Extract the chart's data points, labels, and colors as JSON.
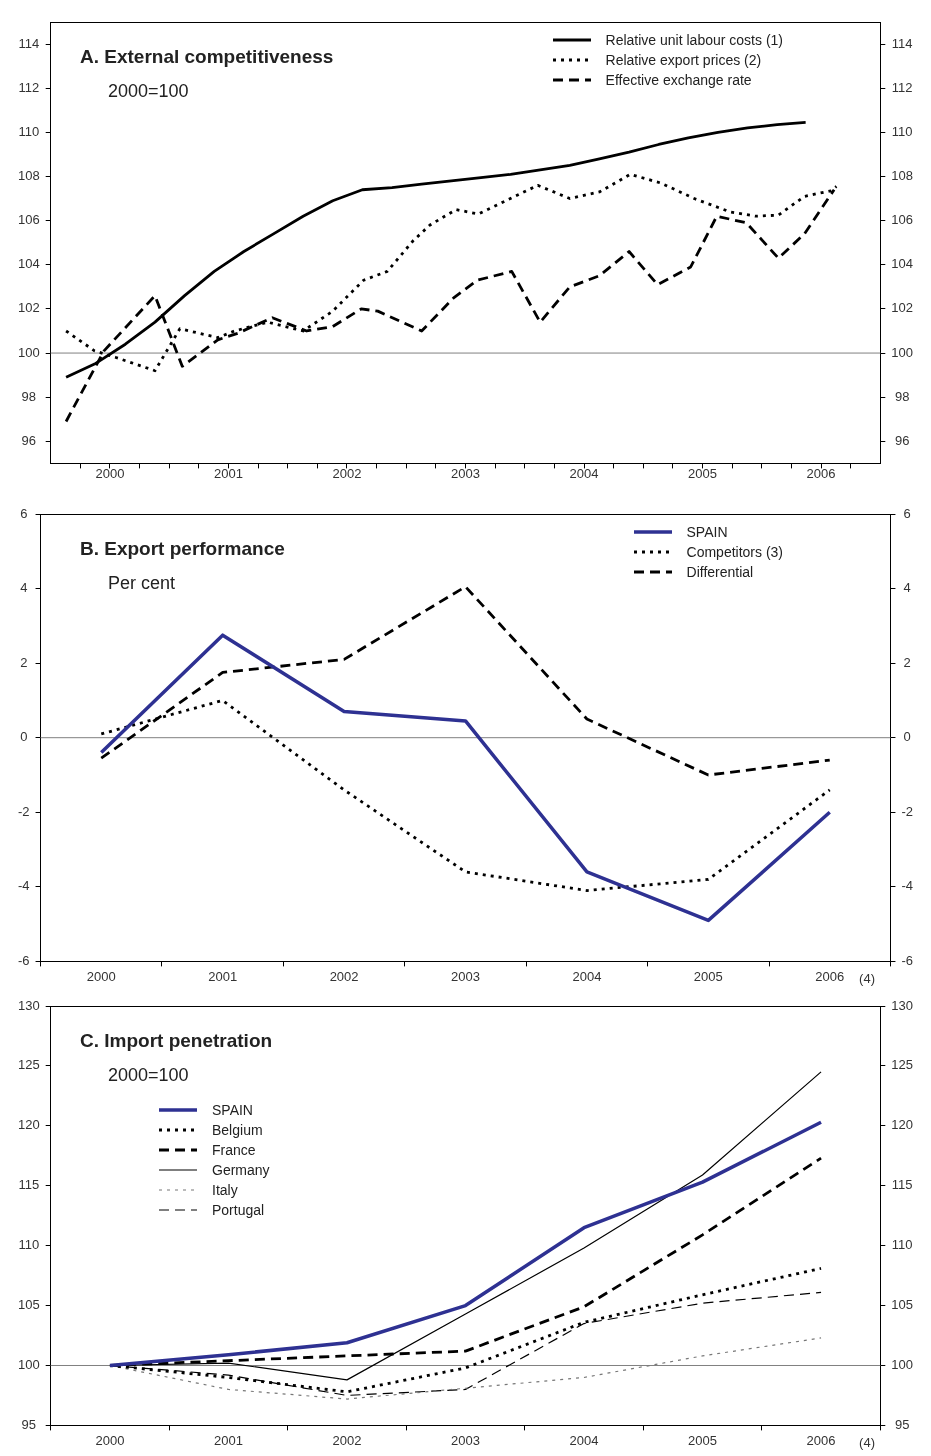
{
  "chart_data": [
    {
      "type": "line",
      "title": "A. External competitiveness",
      "subtitle": "2000=100",
      "legend": "top right",
      "grid": false,
      "xlim": [
        2000,
        2007
      ],
      "xticks": [
        {
          "value": 2000.25,
          "label": null
        },
        {
          "value": 2000.5,
          "label": "2000"
        },
        {
          "value": 2000.75,
          "label": null
        },
        {
          "value": 2001,
          "label": null
        },
        {
          "value": 2001.25,
          "label": null
        },
        {
          "value": 2001.5,
          "label": "2001"
        },
        {
          "value": 2001.75,
          "label": null
        },
        {
          "value": 2002,
          "label": null
        },
        {
          "value": 2002.25,
          "label": null
        },
        {
          "value": 2002.5,
          "label": "2002"
        },
        {
          "value": 2002.75,
          "label": null
        },
        {
          "value": 2003,
          "label": null
        },
        {
          "value": 2003.25,
          "label": null
        },
        {
          "value": 2003.5,
          "label": "2003"
        },
        {
          "value": 2003.75,
          "label": null
        },
        {
          "value": 2004,
          "label": null
        },
        {
          "value": 2004.25,
          "label": null
        },
        {
          "value": 2004.5,
          "label": "2004"
        },
        {
          "value": 2004.75,
          "label": null
        },
        {
          "value": 2005,
          "label": null
        },
        {
          "value": 2005.25,
          "label": null
        },
        {
          "value": 2005.5,
          "label": "2005"
        },
        {
          "value": 2005.75,
          "label": null
        },
        {
          "value": 2006,
          "label": null
        },
        {
          "value": 2006.25,
          "label": null
        },
        {
          "value": 2006.5,
          "label": "2006"
        },
        {
          "value": 2006.75,
          "label": null
        }
      ],
      "ylim": [
        95,
        115
      ],
      "yticks": [
        96,
        98,
        100,
        102,
        104,
        106,
        108,
        110,
        112,
        114
      ],
      "y2lim": [
        95,
        115
      ],
      "y2ticks": [
        96,
        98,
        100,
        102,
        104,
        106,
        108,
        110,
        112,
        114
      ],
      "ref_lines": [
        {
          "axis": "y",
          "value": 100,
          "color": "#808080"
        }
      ],
      "series": [
        {
          "name": "Relative unit labour costs (1)",
          "color": "#000000",
          "line_style": "solid",
          "x": [
            2000.13,
            2000.37,
            2000.63,
            2000.88,
            2001.13,
            2001.38,
            2001.63,
            2001.88,
            2002.13,
            2002.38,
            2002.63,
            2002.88,
            2003.13,
            2003.38,
            2003.63,
            2003.88,
            2004.13,
            2004.38,
            2004.63,
            2004.88,
            2005.13,
            2005.38,
            2005.63,
            2005.88,
            2006.13,
            2006.37
          ],
          "values": [
            98.9,
            99.5,
            100.4,
            101.4,
            102.6,
            103.7,
            104.6,
            105.4,
            106.2,
            106.9,
            107.4,
            107.5,
            107.65,
            107.8,
            107.95,
            108.1,
            108.3,
            108.5,
            108.8,
            109.1,
            109.45,
            109.75,
            110.0,
            110.2,
            110.35,
            110.45
          ]
        },
        {
          "name": "Relative export prices (2)",
          "color": "#000000",
          "line_style": "dotted",
          "x": [
            2000.13,
            2000.37,
            2000.55,
            2000.88,
            2001.09,
            2001.41,
            2001.55,
            2001.83,
            2002.13,
            2002.38,
            2002.64,
            2002.84,
            2003.06,
            2003.2,
            2003.42,
            2003.61,
            2004.11,
            2004.38,
            2004.63,
            2004.89,
            2005.15,
            2005.43,
            2005.73,
            2005.95,
            2006.14,
            2006.36,
            2006.58,
            2006.63
          ],
          "values": [
            101.0,
            100.1,
            99.8,
            99.2,
            101.1,
            100.7,
            101.0,
            101.4,
            101.0,
            101.9,
            103.3,
            103.7,
            105.1,
            105.8,
            106.5,
            106.3,
            107.6,
            107.0,
            107.3,
            108.1,
            107.7,
            107.0,
            106.4,
            106.2,
            106.25,
            107.1,
            107.35,
            107.55
          ]
        },
        {
          "name": "Effective exchange rate",
          "color": "#000000",
          "line_style": "dashed",
          "x": [
            2000.13,
            2000.45,
            2000.88,
            2001.11,
            2001.41,
            2001.58,
            2001.87,
            2002.16,
            2002.38,
            2002.62,
            2002.76,
            2003.13,
            2003.4,
            2003.6,
            2003.89,
            2004.13,
            2004.38,
            2004.63,
            2004.88,
            2005.12,
            2005.4,
            2005.62,
            2005.87,
            2006.14,
            2006.36,
            2006.61
          ],
          "values": [
            96.9,
            100.1,
            102.6,
            99.4,
            100.6,
            100.9,
            101.6,
            101.0,
            101.2,
            102.0,
            101.9,
            101.0,
            102.5,
            103.3,
            103.7,
            101.4,
            103.0,
            103.5,
            104.6,
            103.1,
            103.9,
            106.2,
            105.9,
            104.3,
            105.4,
            107.4
          ]
        }
      ]
    },
    {
      "type": "line",
      "title": "B. Export performance",
      "subtitle": "Per cent",
      "legend": "top right",
      "grid": false,
      "categories": [
        "2000",
        "2001",
        "2002",
        "2003",
        "2004",
        "2005",
        "2006"
      ],
      "ylim": [
        -6,
        6
      ],
      "yticks": [
        -6,
        -4,
        -2,
        0,
        2,
        4,
        6
      ],
      "y2lim": [
        -6,
        6
      ],
      "y2ticks": [
        -6,
        -4,
        -2,
        0,
        2,
        4,
        6
      ],
      "ref_lines": [
        {
          "axis": "y",
          "value": 0,
          "color": "#808080"
        }
      ],
      "annotations": [
        "(4)"
      ],
      "series": [
        {
          "name": "SPAIN",
          "color": "#2e3192",
          "line_style": "solid",
          "values": [
            -0.4,
            2.75,
            0.7,
            0.45,
            -3.6,
            -4.9,
            -2.0
          ]
        },
        {
          "name": "Competitors (3)",
          "color": "#000000",
          "line_style": "dotted",
          "values": [
            0.1,
            1.0,
            -1.4,
            -3.6,
            -4.1,
            -3.8,
            -1.4
          ]
        },
        {
          "name": "Differential",
          "color": "#000000",
          "line_style": "dashed",
          "values": [
            -0.55,
            1.75,
            2.1,
            4.05,
            0.5,
            -1.0,
            -0.6
          ]
        }
      ]
    },
    {
      "type": "line",
      "title": "C. Import penetration",
      "subtitle": "2000=100",
      "legend": "top left",
      "grid": false,
      "categories": [
        "2000",
        "2001",
        "2002",
        "2003",
        "2004",
        "2005",
        "2006"
      ],
      "ylim": [
        95,
        130
      ],
      "yticks": [
        95,
        100,
        105,
        110,
        115,
        120,
        125,
        130
      ],
      "y2lim": [
        95,
        130
      ],
      "y2ticks": [
        95,
        100,
        105,
        110,
        115,
        120,
        125,
        130
      ],
      "ref_lines": [
        {
          "axis": "y",
          "value": 100,
          "color": "#808080"
        }
      ],
      "annotations": [
        "(4)"
      ],
      "series": [
        {
          "name": "SPAIN",
          "color": "#2e3192",
          "line_style": "solid",
          "values": [
            100,
            100.9,
            101.9,
            105.0,
            111.5,
            115.3,
            120.3
          ]
        },
        {
          "name": "Belgium",
          "color": "#000000",
          "line_style": "dotted",
          "values": [
            100,
            99.0,
            97.8,
            99.8,
            103.6,
            105.9,
            108.1
          ]
        },
        {
          "name": "France",
          "color": "#000000",
          "line_style": "dashed",
          "values": [
            100,
            100.4,
            100.8,
            101.2,
            104.9,
            110.9,
            117.3
          ]
        },
        {
          "name": "Germany",
          "color": "#000000",
          "line_style": "solid",
          "values": [
            100,
            100.2,
            98.8,
            104.3,
            109.8,
            115.9,
            124.5
          ]
        },
        {
          "name": "Italy",
          "color": "#777777",
          "line_style": "dotted",
          "values": [
            100,
            98.0,
            97.2,
            98.1,
            99.0,
            100.8,
            102.3
          ]
        },
        {
          "name": "Portugal",
          "color": "#000000",
          "line_style": "dashed",
          "values": [
            100,
            99.2,
            97.5,
            98.0,
            103.5,
            105.2,
            106.1
          ]
        }
      ]
    }
  ]
}
